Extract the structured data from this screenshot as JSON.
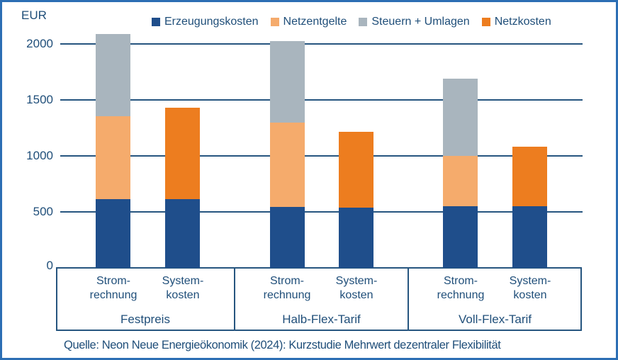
{
  "chart_data": {
    "type": "bar",
    "stacked": true,
    "unit_label": "EUR",
    "ylim": [
      0,
      2000
    ],
    "yticks": [
      0,
      500,
      1000,
      1500,
      2000
    ],
    "grid": "horizontal",
    "legend_position": "top",
    "legend": [
      {
        "label": "Erzeugungskosten",
        "color": "#1F4E8B"
      },
      {
        "label": "Netzentgelte",
        "color": "#F5AB6C"
      },
      {
        "label": "Steuern + Umlagen",
        "color": "#A9B5BE"
      },
      {
        "label": "Netzkosten",
        "color": "#ED7D1F"
      }
    ],
    "groups": [
      {
        "label": "Festpreis",
        "bars": [
          {
            "label": "Strom-\nrechnung",
            "segments": [
              {
                "series": "Erzeugungskosten",
                "value": 615
              },
              {
                "series": "Netzentgelte",
                "value": 740
              },
              {
                "series": "Steuern + Umlagen",
                "value": 735
              }
            ],
            "total": 2090
          },
          {
            "label": "System-\nkosten",
            "segments": [
              {
                "series": "Erzeugungskosten",
                "value": 615
              },
              {
                "series": "Netzkosten",
                "value": 815
              }
            ],
            "total": 1430
          }
        ]
      },
      {
        "label": "Halb-Flex-Tarif",
        "bars": [
          {
            "label": "Strom-\nrechnung",
            "segments": [
              {
                "series": "Erzeugungskosten",
                "value": 545
              },
              {
                "series": "Netzentgelte",
                "value": 755
              },
              {
                "series": "Steuern + Umlagen",
                "value": 725
              }
            ],
            "total": 2025
          },
          {
            "label": "System-\nkosten",
            "segments": [
              {
                "series": "Erzeugungskosten",
                "value": 540
              },
              {
                "series": "Netzkosten",
                "value": 675
              }
            ],
            "total": 1215
          }
        ]
      },
      {
        "label": "Voll-Flex-Tarif",
        "bars": [
          {
            "label": "Strom-\nrechnung",
            "segments": [
              {
                "series": "Erzeugungskosten",
                "value": 550
              },
              {
                "series": "Netzentgelte",
                "value": 450
              },
              {
                "series": "Steuern + Umlagen",
                "value": 690
              }
            ],
            "total": 1690
          },
          {
            "label": "System-\nkosten",
            "segments": [
              {
                "series": "Erzeugungskosten",
                "value": 550
              },
              {
                "series": "Netzkosten",
                "value": 530
              }
            ],
            "total": 1080
          }
        ]
      }
    ],
    "source": "Quelle: Neon Neue Energieökonomik (2024): Kurzstudie Mehrwert dezentraler Flexibilität"
  },
  "colors": {
    "text": "#1F4E79",
    "axis": "#26557F",
    "frame_border": "#2C6EB4",
    "background": "#FFFFFF"
  }
}
